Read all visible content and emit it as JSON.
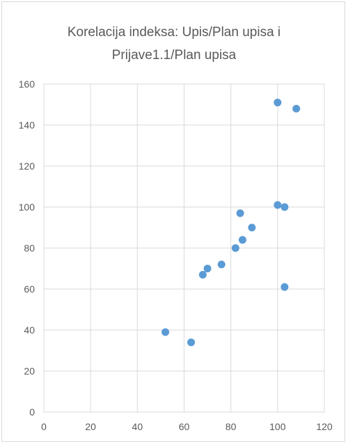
{
  "chart_data": {
    "type": "scatter",
    "title_lines": [
      "Korelacija indeksa: Upis/Plan upisa i",
      "Prijave1.1/Plan upisa"
    ],
    "xlim": [
      0,
      120
    ],
    "ylim": [
      0,
      160
    ],
    "x_ticks": [
      0,
      20,
      40,
      60,
      80,
      100,
      120
    ],
    "y_ticks": [
      0,
      20,
      40,
      60,
      80,
      100,
      120,
      140,
      160
    ],
    "grid": true,
    "marker_color": "#5b9bd5",
    "points": [
      {
        "x": 52,
        "y": 39
      },
      {
        "x": 63,
        "y": 34
      },
      {
        "x": 68,
        "y": 67
      },
      {
        "x": 70,
        "y": 70
      },
      {
        "x": 76,
        "y": 72
      },
      {
        "x": 82,
        "y": 80
      },
      {
        "x": 84,
        "y": 97
      },
      {
        "x": 85,
        "y": 84
      },
      {
        "x": 89,
        "y": 90
      },
      {
        "x": 100,
        "y": 151
      },
      {
        "x": 100,
        "y": 101
      },
      {
        "x": 103,
        "y": 100
      },
      {
        "x": 103,
        "y": 61
      },
      {
        "x": 108,
        "y": 148
      }
    ]
  }
}
